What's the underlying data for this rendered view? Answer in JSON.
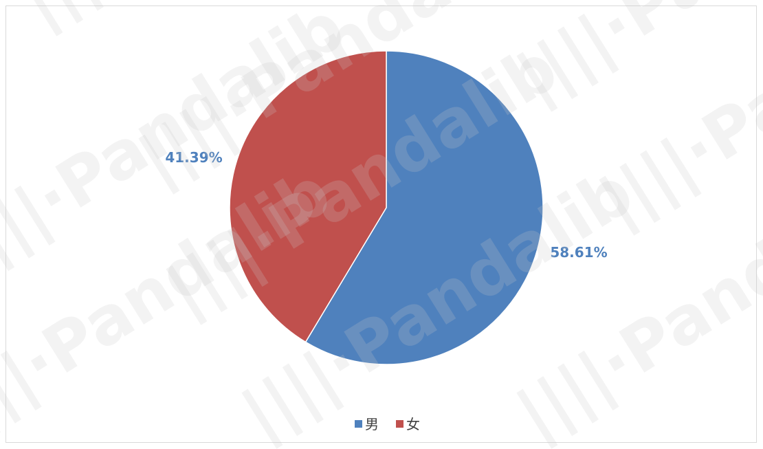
{
  "chart_data": {
    "type": "pie",
    "title": "",
    "categories": [
      "男",
      "女"
    ],
    "values": [
      58.61,
      41.39
    ],
    "labels": [
      "58.61%",
      "41.39%"
    ],
    "colors": [
      "#4f81bd",
      "#c0504d"
    ],
    "label_color": "#4f81bd",
    "legend_position": "bottom"
  },
  "watermark": {
    "text": "||||·Pandalib"
  }
}
